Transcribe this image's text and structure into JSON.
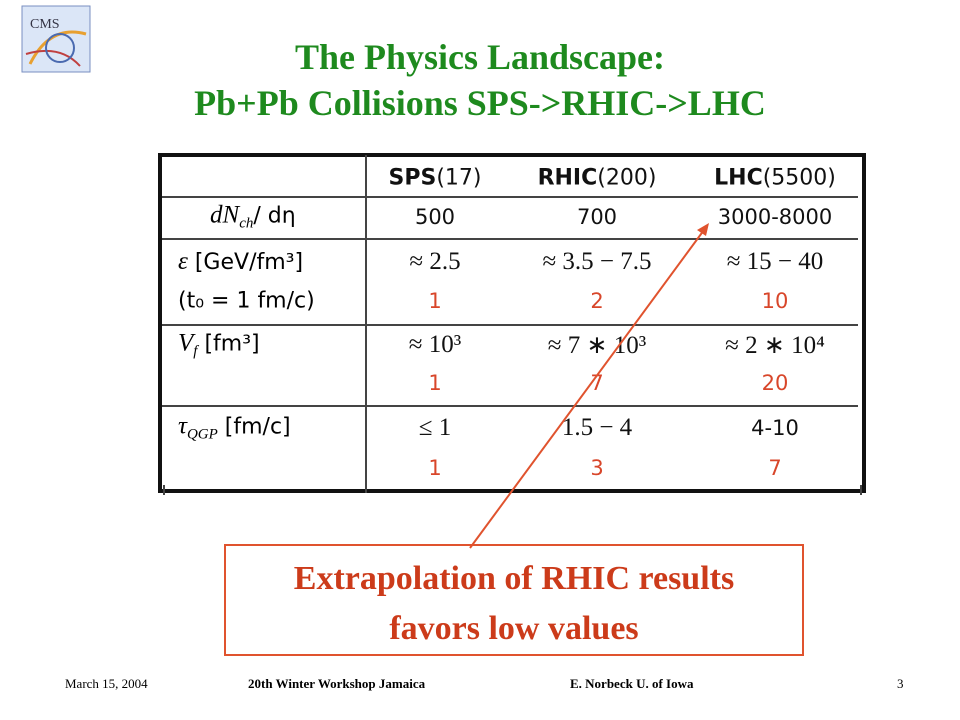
{
  "logo": "CMS",
  "title": {
    "line1": "The Physics Landscape:",
    "line2": "Pb+Pb Collisions SPS->RHIC->LHC"
  },
  "table": {
    "header": [
      {
        "name": "SPS",
        "energy": "(17)"
      },
      {
        "name": "RHIC",
        "energy": "(200)"
      },
      {
        "name": "LHC",
        "energy": "(5500)"
      }
    ],
    "rows": [
      {
        "label": {
          "main": "dN",
          "sub": "ch",
          "rest": "/ dη"
        },
        "values": [
          "500",
          "700",
          "3000-8000"
        ]
      },
      {
        "label": {
          "main": "ε",
          "rest": " [GeV/fm³]"
        },
        "label2": "(t₀ = 1 fm/c)",
        "values": [
          "≈ 2.5",
          "≈ 3.5 − 7.5",
          "≈ 15 − 40"
        ],
        "red": [
          "1",
          "2",
          "10"
        ]
      },
      {
        "label": {
          "main": "V",
          "sub": "f",
          "rest": " [fm³]"
        },
        "values": [
          "≈ 10³",
          "≈ 7 ∗ 10³",
          "≈ 2 ∗ 10⁴"
        ],
        "red": [
          "1",
          "7",
          "20"
        ]
      },
      {
        "label": {
          "main": "τ",
          "sub": "QGP",
          "rest": " [fm/c]"
        },
        "values": [
          "≤ 1",
          "1.5 − 4",
          "4-10"
        ],
        "red": [
          "1",
          "3",
          "7"
        ]
      }
    ]
  },
  "callout": {
    "line1": "Extrapolation of RHIC results",
    "line2": "favors low values"
  },
  "footer": {
    "date": "March 15, 2004",
    "event": "20th Winter Workshop  Jamaica",
    "author": "E. Norbeck  U. of Iowa",
    "page": "3"
  }
}
